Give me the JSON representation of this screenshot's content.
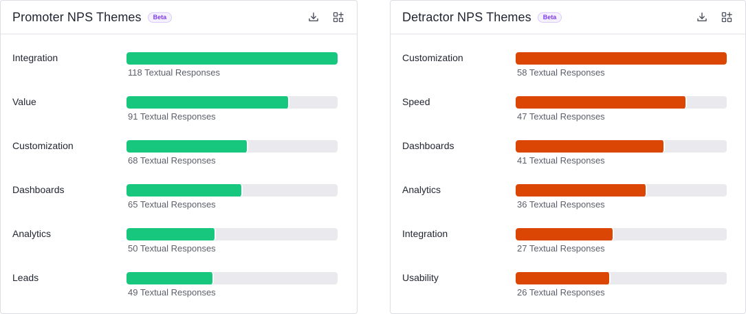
{
  "panels": [
    {
      "title": "Promoter NPS Themes",
      "badge": "Beta",
      "bar_color": "#18c77e",
      "icons": [
        "download-icon",
        "add-widget-icon"
      ],
      "max_value": 118,
      "unit_suffix": "Textual Responses",
      "themes": [
        {
          "label": "Integration",
          "count": 118,
          "count_text": "118 Textual Responses"
        },
        {
          "label": "Value",
          "count": 91,
          "count_text": "91 Textual Responses"
        },
        {
          "label": "Customization",
          "count": 68,
          "count_text": "68 Textual Responses"
        },
        {
          "label": "Dashboards",
          "count": 65,
          "count_text": "65 Textual Responses"
        },
        {
          "label": "Analytics",
          "count": 50,
          "count_text": "50 Textual Responses"
        },
        {
          "label": "Leads",
          "count": 49,
          "count_text": "49 Textual Responses"
        }
      ]
    },
    {
      "title": "Detractor NPS Themes",
      "badge": "Beta",
      "bar_color": "#dc4605",
      "icons": [
        "download-icon",
        "add-widget-icon"
      ],
      "max_value": 58,
      "unit_suffix": "Textual Responses",
      "themes": [
        {
          "label": "Customization",
          "count": 58,
          "count_text": "58 Textual Responses"
        },
        {
          "label": "Speed",
          "count": 47,
          "count_text": "47 Textual Responses"
        },
        {
          "label": "Dashboards",
          "count": 41,
          "count_text": "41 Textual Responses"
        },
        {
          "label": "Analytics",
          "count": 36,
          "count_text": "36 Textual Responses"
        },
        {
          "label": "Integration",
          "count": 27,
          "count_text": "27 Textual Responses"
        },
        {
          "label": "Usability",
          "count": 26,
          "count_text": "26 Textual Responses"
        }
      ]
    }
  ]
}
